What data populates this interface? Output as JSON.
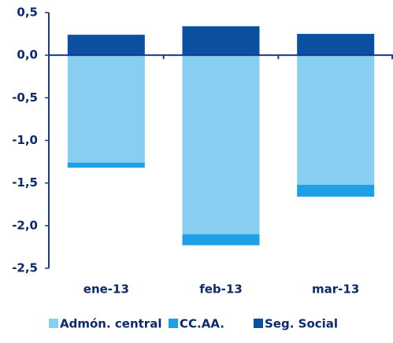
{
  "chart_data": {
    "type": "bar",
    "stacked": true,
    "categories": [
      "ene-13",
      "feb-13",
      "mar-13"
    ],
    "series": [
      {
        "name": "Admón. central",
        "color": "#87cef0",
        "values": [
          -1.26,
          -2.1,
          -1.52
        ]
      },
      {
        "name": "CC.AA.",
        "color": "#1ea0e6",
        "values": [
          -0.06,
          -0.13,
          -0.14
        ]
      },
      {
        "name": "Seg. Social",
        "color": "#0a4fa0",
        "values": [
          0.24,
          0.34,
          0.25
        ]
      }
    ],
    "ylim": [
      -2.5,
      0.5
    ],
    "yticks": [
      {
        "value": -2.5,
        "label": "-2,5"
      },
      {
        "value": -2.0,
        "label": "-2,0"
      },
      {
        "value": -1.5,
        "label": "-1,5"
      },
      {
        "value": -1.0,
        "label": "-1,0"
      },
      {
        "value": -0.5,
        "label": "-0,5"
      },
      {
        "value": 0.0,
        "label": "0,0"
      },
      {
        "value": 0.5,
        "label": "0,5"
      }
    ],
    "legend": "bottom"
  }
}
